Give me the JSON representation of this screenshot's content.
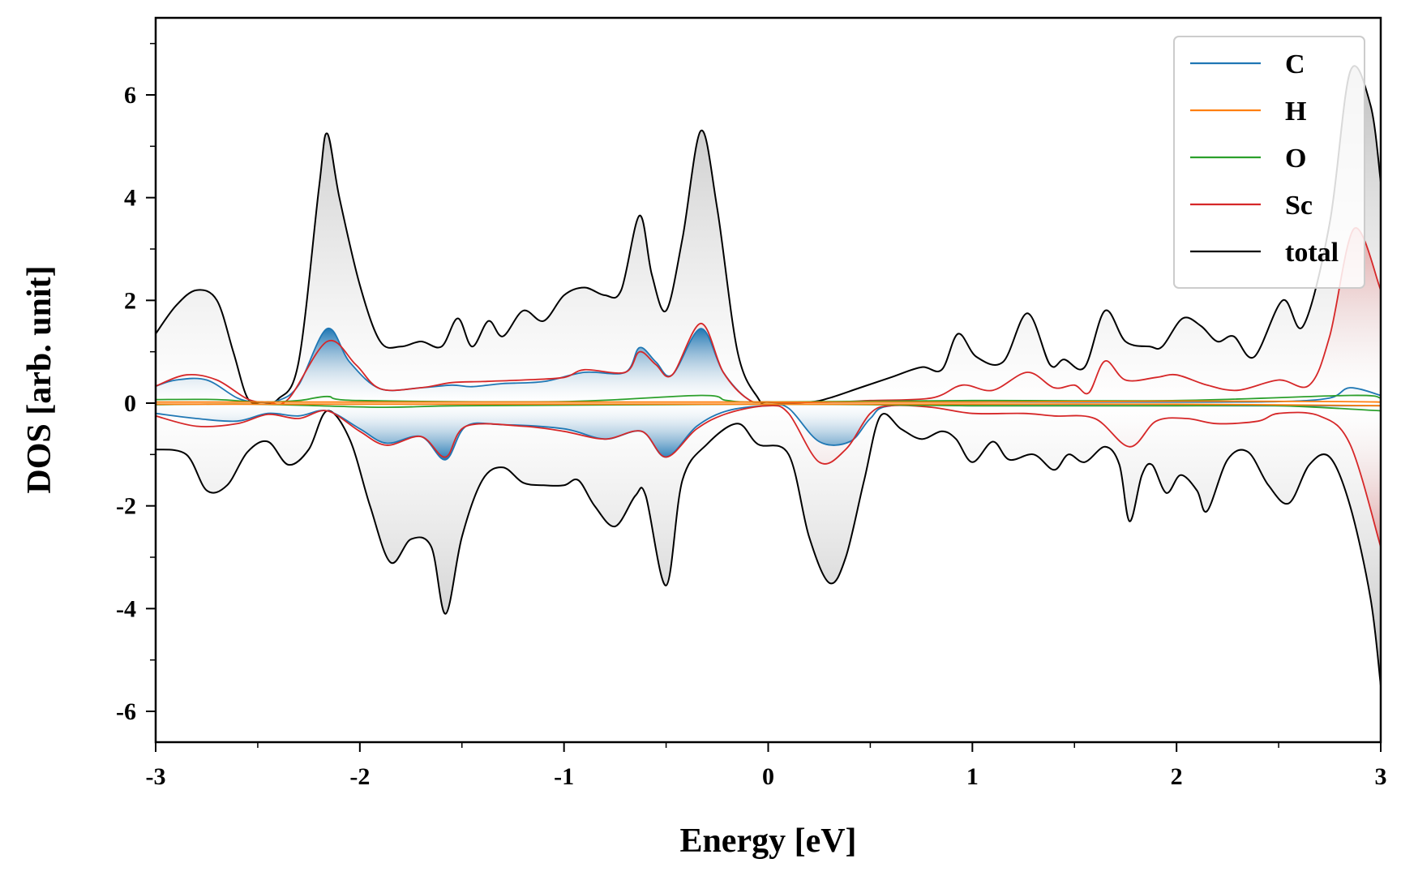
{
  "chart_data": {
    "type": "line",
    "title": "",
    "xlabel": "Energy [eV]",
    "ylabel": "DOS [arb. unit]",
    "xlim": [
      -3,
      3
    ],
    "ylim": [
      -6.6,
      7.5
    ],
    "xticks": [
      -3,
      -2,
      -1,
      0,
      1,
      2,
      3
    ],
    "yticks": [
      -6,
      -4,
      -2,
      0,
      2,
      4,
      6
    ],
    "grid": false,
    "legend_position": "top-right",
    "fills": "gradient shading between each spin curve and zero for total (grey), C (blue) and Sc (red, at high energy)",
    "series": [
      {
        "name": "C",
        "color": "#1f77b4",
        "up": [
          [
            -3,
            0.33
          ],
          [
            -2.9,
            0.45
          ],
          [
            -2.75,
            0.45
          ],
          [
            -2.6,
            0.1
          ],
          [
            -2.5,
            0.02
          ],
          [
            -2.4,
            0.05
          ],
          [
            -2.3,
            0.35
          ],
          [
            -2.16,
            1.45
          ],
          [
            -2.05,
            0.8
          ],
          [
            -1.9,
            0.28
          ],
          [
            -1.7,
            0.3
          ],
          [
            -1.55,
            0.35
          ],
          [
            -1.45,
            0.32
          ],
          [
            -1.3,
            0.38
          ],
          [
            -1.1,
            0.42
          ],
          [
            -0.9,
            0.6
          ],
          [
            -0.7,
            0.6
          ],
          [
            -0.63,
            1.08
          ],
          [
            -0.55,
            0.8
          ],
          [
            -0.47,
            0.55
          ],
          [
            -0.33,
            1.45
          ],
          [
            -0.22,
            0.6
          ],
          [
            -0.1,
            0.08
          ],
          [
            0,
            0.02
          ],
          [
            0.5,
            0.02
          ],
          [
            1,
            0.02
          ],
          [
            1.5,
            0.02
          ],
          [
            2,
            0.02
          ],
          [
            2.5,
            0.03
          ],
          [
            2.75,
            0.1
          ],
          [
            2.85,
            0.3
          ],
          [
            3,
            0.15
          ]
        ],
        "down": [
          [
            -3,
            -0.2
          ],
          [
            -2.8,
            -0.3
          ],
          [
            -2.6,
            -0.35
          ],
          [
            -2.45,
            -0.2
          ],
          [
            -2.3,
            -0.25
          ],
          [
            -2.16,
            -0.15
          ],
          [
            -2.0,
            -0.5
          ],
          [
            -1.87,
            -0.78
          ],
          [
            -1.7,
            -0.65
          ],
          [
            -1.58,
            -1.1
          ],
          [
            -1.48,
            -0.45
          ],
          [
            -1.3,
            -0.42
          ],
          [
            -1.0,
            -0.5
          ],
          [
            -0.8,
            -0.7
          ],
          [
            -0.62,
            -0.55
          ],
          [
            -0.5,
            -1.05
          ],
          [
            -0.35,
            -0.45
          ],
          [
            -0.2,
            -0.15
          ],
          [
            0,
            -0.05
          ],
          [
            0.1,
            -0.1
          ],
          [
            0.25,
            -0.75
          ],
          [
            0.4,
            -0.75
          ],
          [
            0.5,
            -0.3
          ],
          [
            0.6,
            -0.05
          ],
          [
            1,
            -0.05
          ],
          [
            1.5,
            -0.05
          ],
          [
            2,
            -0.05
          ],
          [
            2.5,
            -0.05
          ],
          [
            3,
            -0.05
          ]
        ]
      },
      {
        "name": "H",
        "color": "#ff7f0e",
        "up": [
          [
            -3,
            0.02
          ],
          [
            -2,
            0.02
          ],
          [
            -1,
            0.02
          ],
          [
            0,
            0.02
          ],
          [
            1,
            0.02
          ],
          [
            2,
            0.04
          ],
          [
            2.8,
            0.03
          ],
          [
            3,
            0.02
          ]
        ],
        "down": [
          [
            -3,
            -0.02
          ],
          [
            -2,
            -0.02
          ],
          [
            -1,
            -0.02
          ],
          [
            0,
            -0.02
          ],
          [
            1,
            -0.02
          ],
          [
            2,
            -0.02
          ],
          [
            3,
            -0.05
          ]
        ]
      },
      {
        "name": "O",
        "color": "#2ca02c",
        "up": [
          [
            -3,
            0.07
          ],
          [
            -2.7,
            0.07
          ],
          [
            -2.5,
            0.02
          ],
          [
            -2.3,
            0.05
          ],
          [
            -2.16,
            0.13
          ],
          [
            -2.0,
            0.05
          ],
          [
            -1.0,
            0.03
          ],
          [
            -0.33,
            0.15
          ],
          [
            -0.2,
            0.05
          ],
          [
            0,
            0.02
          ],
          [
            1,
            0.05
          ],
          [
            2,
            0.05
          ],
          [
            2.85,
            0.15
          ],
          [
            3,
            0.1
          ]
        ],
        "down": [
          [
            -3,
            -0.03
          ],
          [
            -2.5,
            -0.02
          ],
          [
            -1.9,
            -0.08
          ],
          [
            -1.5,
            -0.05
          ],
          [
            -0.5,
            -0.03
          ],
          [
            0,
            -0.02
          ],
          [
            0.5,
            -0.03
          ],
          [
            1,
            -0.05
          ],
          [
            2,
            -0.05
          ],
          [
            2.5,
            -0.05
          ],
          [
            3,
            -0.15
          ]
        ]
      },
      {
        "name": "Sc",
        "color": "#d62728",
        "up": [
          [
            -3,
            0.33
          ],
          [
            -2.85,
            0.55
          ],
          [
            -2.7,
            0.45
          ],
          [
            -2.55,
            0.08
          ],
          [
            -2.45,
            0.02
          ],
          [
            -2.35,
            0.08
          ],
          [
            -2.16,
            1.2
          ],
          [
            -2.02,
            0.75
          ],
          [
            -1.9,
            0.28
          ],
          [
            -1.7,
            0.3
          ],
          [
            -1.55,
            0.4
          ],
          [
            -1.4,
            0.42
          ],
          [
            -1.2,
            0.45
          ],
          [
            -1.0,
            0.5
          ],
          [
            -0.9,
            0.65
          ],
          [
            -0.7,
            0.6
          ],
          [
            -0.63,
            1.0
          ],
          [
            -0.55,
            0.75
          ],
          [
            -0.47,
            0.55
          ],
          [
            -0.33,
            1.55
          ],
          [
            -0.22,
            0.6
          ],
          [
            -0.1,
            0.08
          ],
          [
            0,
            0.02
          ],
          [
            0.3,
            0.02
          ],
          [
            0.5,
            0.05
          ],
          [
            0.8,
            0.1
          ],
          [
            0.95,
            0.35
          ],
          [
            1.1,
            0.25
          ],
          [
            1.27,
            0.6
          ],
          [
            1.4,
            0.3
          ],
          [
            1.5,
            0.35
          ],
          [
            1.57,
            0.2
          ],
          [
            1.65,
            0.82
          ],
          [
            1.75,
            0.45
          ],
          [
            1.9,
            0.5
          ],
          [
            2.0,
            0.55
          ],
          [
            2.15,
            0.35
          ],
          [
            2.3,
            0.25
          ],
          [
            2.5,
            0.45
          ],
          [
            2.65,
            0.35
          ],
          [
            2.75,
            1.3
          ],
          [
            2.87,
            3.4
          ],
          [
            3,
            2.2
          ]
        ],
        "down": [
          [
            -3,
            -0.25
          ],
          [
            -2.8,
            -0.45
          ],
          [
            -2.6,
            -0.4
          ],
          [
            -2.45,
            -0.22
          ],
          [
            -2.3,
            -0.3
          ],
          [
            -2.16,
            -0.15
          ],
          [
            -2.0,
            -0.55
          ],
          [
            -1.87,
            -0.82
          ],
          [
            -1.7,
            -0.65
          ],
          [
            -1.58,
            -1.05
          ],
          [
            -1.48,
            -0.45
          ],
          [
            -1.2,
            -0.45
          ],
          [
            -1.0,
            -0.55
          ],
          [
            -0.8,
            -0.7
          ],
          [
            -0.62,
            -0.55
          ],
          [
            -0.5,
            -1.05
          ],
          [
            -0.35,
            -0.5
          ],
          [
            -0.2,
            -0.2
          ],
          [
            0,
            -0.05
          ],
          [
            0.1,
            -0.2
          ],
          [
            0.25,
            -1.15
          ],
          [
            0.38,
            -0.9
          ],
          [
            0.5,
            -0.2
          ],
          [
            0.6,
            -0.05
          ],
          [
            0.8,
            -0.08
          ],
          [
            1.0,
            -0.2
          ],
          [
            1.25,
            -0.2
          ],
          [
            1.4,
            -0.25
          ],
          [
            1.6,
            -0.3
          ],
          [
            1.77,
            -0.85
          ],
          [
            1.9,
            -0.35
          ],
          [
            2.05,
            -0.3
          ],
          [
            2.2,
            -0.4
          ],
          [
            2.4,
            -0.35
          ],
          [
            2.5,
            -0.2
          ],
          [
            2.7,
            -0.25
          ],
          [
            2.85,
            -0.8
          ],
          [
            3,
            -2.8
          ]
        ]
      },
      {
        "name": "total",
        "color": "#000000",
        "up": [
          [
            -3,
            1.35
          ],
          [
            -2.9,
            1.9
          ],
          [
            -2.8,
            2.2
          ],
          [
            -2.7,
            2.0
          ],
          [
            -2.62,
            1.0
          ],
          [
            -2.55,
            0.1
          ],
          [
            -2.48,
            0.02
          ],
          [
            -2.4,
            0.08
          ],
          [
            -2.3,
            0.8
          ],
          [
            -2.2,
            4.2
          ],
          [
            -2.16,
            5.25
          ],
          [
            -2.1,
            4.0
          ],
          [
            -2.0,
            2.3
          ],
          [
            -1.9,
            1.2
          ],
          [
            -1.8,
            1.1
          ],
          [
            -1.7,
            1.2
          ],
          [
            -1.6,
            1.1
          ],
          [
            -1.52,
            1.65
          ],
          [
            -1.45,
            1.1
          ],
          [
            -1.37,
            1.6
          ],
          [
            -1.3,
            1.3
          ],
          [
            -1.2,
            1.8
          ],
          [
            -1.1,
            1.6
          ],
          [
            -1.0,
            2.1
          ],
          [
            -0.9,
            2.25
          ],
          [
            -0.8,
            2.1
          ],
          [
            -0.72,
            2.2
          ],
          [
            -0.63,
            3.65
          ],
          [
            -0.57,
            2.5
          ],
          [
            -0.5,
            1.8
          ],
          [
            -0.42,
            3.2
          ],
          [
            -0.33,
            5.3
          ],
          [
            -0.25,
            3.8
          ],
          [
            -0.15,
            1.0
          ],
          [
            -0.05,
            0.1
          ],
          [
            0,
            0.02
          ],
          [
            0.2,
            0.02
          ],
          [
            0.3,
            0.1
          ],
          [
            0.45,
            0.3
          ],
          [
            0.6,
            0.5
          ],
          [
            0.75,
            0.7
          ],
          [
            0.85,
            0.65
          ],
          [
            0.93,
            1.35
          ],
          [
            1.02,
            0.9
          ],
          [
            1.15,
            0.8
          ],
          [
            1.27,
            1.75
          ],
          [
            1.38,
            0.75
          ],
          [
            1.45,
            0.85
          ],
          [
            1.55,
            0.7
          ],
          [
            1.65,
            1.8
          ],
          [
            1.75,
            1.2
          ],
          [
            1.87,
            1.1
          ],
          [
            1.93,
            1.1
          ],
          [
            2.03,
            1.65
          ],
          [
            2.12,
            1.5
          ],
          [
            2.2,
            1.2
          ],
          [
            2.28,
            1.3
          ],
          [
            2.38,
            0.9
          ],
          [
            2.52,
            2.0
          ],
          [
            2.62,
            1.5
          ],
          [
            2.75,
            3.5
          ],
          [
            2.85,
            6.45
          ],
          [
            2.95,
            5.8
          ],
          [
            3,
            4.3
          ]
        ],
        "down": [
          [
            -3,
            -0.9
          ],
          [
            -2.85,
            -1.0
          ],
          [
            -2.75,
            -1.7
          ],
          [
            -2.65,
            -1.6
          ],
          [
            -2.55,
            -0.95
          ],
          [
            -2.45,
            -0.75
          ],
          [
            -2.35,
            -1.2
          ],
          [
            -2.25,
            -0.9
          ],
          [
            -2.16,
            -0.15
          ],
          [
            -2.05,
            -0.7
          ],
          [
            -1.95,
            -2.0
          ],
          [
            -1.85,
            -3.1
          ],
          [
            -1.75,
            -2.65
          ],
          [
            -1.65,
            -2.8
          ],
          [
            -1.58,
            -4.1
          ],
          [
            -1.5,
            -2.6
          ],
          [
            -1.4,
            -1.5
          ],
          [
            -1.3,
            -1.25
          ],
          [
            -1.2,
            -1.55
          ],
          [
            -1.1,
            -1.6
          ],
          [
            -1.0,
            -1.6
          ],
          [
            -0.93,
            -1.5
          ],
          [
            -0.85,
            -2.0
          ],
          [
            -0.75,
            -2.4
          ],
          [
            -0.65,
            -1.8
          ],
          [
            -0.6,
            -1.8
          ],
          [
            -0.5,
            -3.55
          ],
          [
            -0.42,
            -1.5
          ],
          [
            -0.3,
            -0.8
          ],
          [
            -0.15,
            -0.4
          ],
          [
            -0.05,
            -0.8
          ],
          [
            0.1,
            -1.0
          ],
          [
            0.2,
            -2.6
          ],
          [
            0.3,
            -3.5
          ],
          [
            0.38,
            -3.0
          ],
          [
            0.47,
            -1.5
          ],
          [
            0.55,
            -0.25
          ],
          [
            0.65,
            -0.5
          ],
          [
            0.75,
            -0.7
          ],
          [
            0.85,
            -0.55
          ],
          [
            0.92,
            -0.7
          ],
          [
            1.0,
            -1.15
          ],
          [
            1.1,
            -0.75
          ],
          [
            1.18,
            -1.1
          ],
          [
            1.3,
            -1.0
          ],
          [
            1.4,
            -1.3
          ],
          [
            1.47,
            -1.0
          ],
          [
            1.55,
            -1.15
          ],
          [
            1.65,
            -0.85
          ],
          [
            1.72,
            -1.2
          ],
          [
            1.77,
            -2.3
          ],
          [
            1.83,
            -1.4
          ],
          [
            1.88,
            -1.2
          ],
          [
            1.95,
            -1.75
          ],
          [
            2.02,
            -1.4
          ],
          [
            2.1,
            -1.7
          ],
          [
            2.15,
            -2.1
          ],
          [
            2.25,
            -1.1
          ],
          [
            2.35,
            -0.95
          ],
          [
            2.45,
            -1.6
          ],
          [
            2.55,
            -1.95
          ],
          [
            2.65,
            -1.2
          ],
          [
            2.75,
            -1.05
          ],
          [
            2.85,
            -2.0
          ],
          [
            2.95,
            -3.8
          ],
          [
            3,
            -5.5
          ]
        ]
      }
    ]
  }
}
